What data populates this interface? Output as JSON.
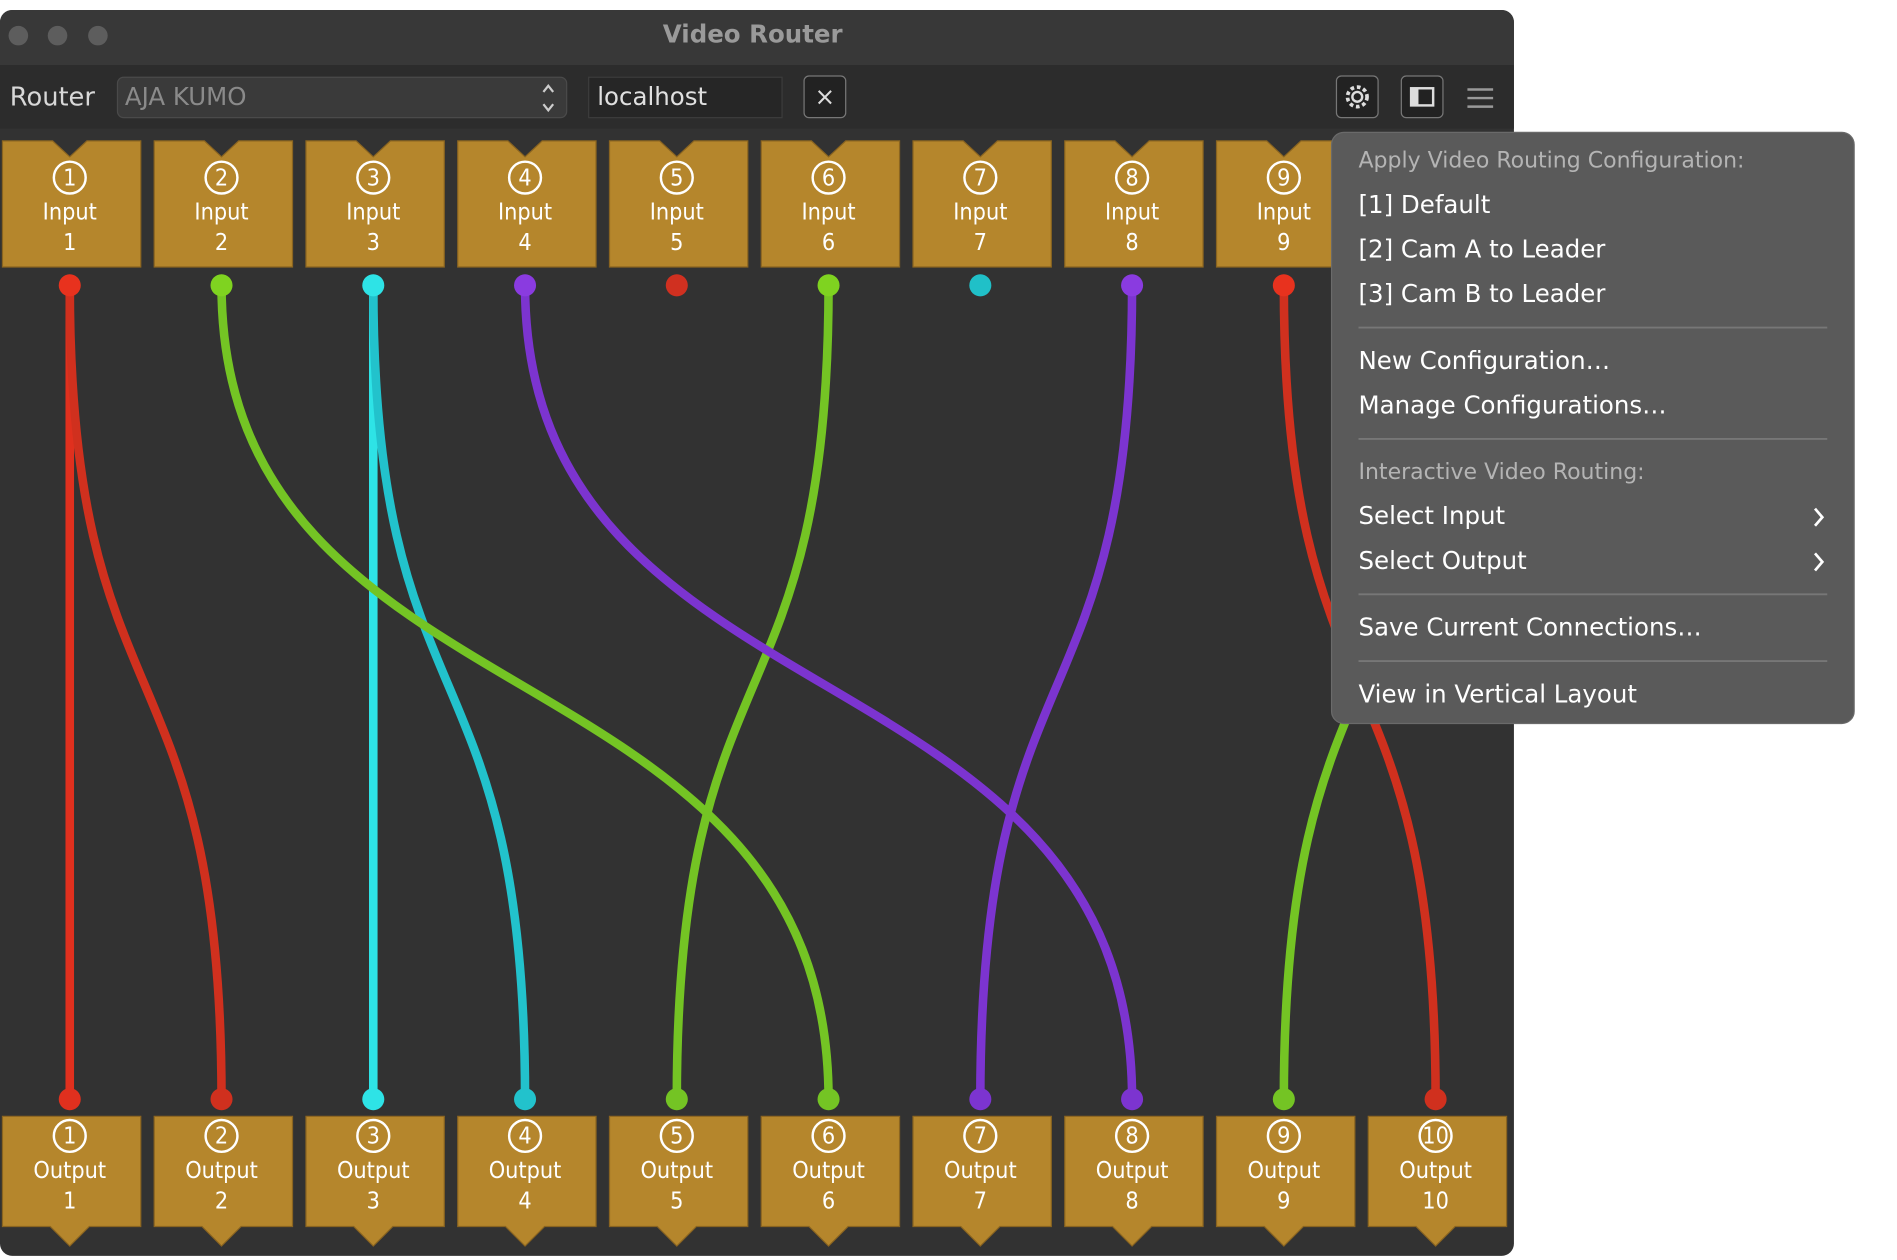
{
  "window": {
    "title": "Video Router"
  },
  "toolbar": {
    "label": "Router",
    "router": "AJA KUMO",
    "host": "localhost",
    "clear": "×"
  },
  "inputs": [
    {
      "number": "1",
      "label": "Input",
      "color": "#e8321e"
    },
    {
      "number": "2",
      "label": "Input",
      "color": "#7fd320"
    },
    {
      "number": "3",
      "label": "Input",
      "color": "#2ee3e6"
    },
    {
      "number": "4",
      "label": "Input",
      "color": "#8a3be0"
    },
    {
      "number": "5",
      "label": "Input",
      "color": "#d03020"
    },
    {
      "number": "6",
      "label": "Input",
      "color": "#7fd320"
    },
    {
      "number": "7",
      "label": "Input",
      "color": "#20c0c8"
    },
    {
      "number": "8",
      "label": "Input",
      "color": "#8a3be0"
    },
    {
      "number": "9",
      "label": "Input",
      "color": "#e8321e"
    }
  ],
  "outputs": [
    {
      "number": "1",
      "label": "Output",
      "source": 1,
      "color": "#e0301e"
    },
    {
      "number": "2",
      "label": "Output",
      "source": 1,
      "color": "#d0301e"
    },
    {
      "number": "3",
      "label": "Output",
      "source": 3,
      "color": "#2ee3e6"
    },
    {
      "number": "4",
      "label": "Output",
      "source": 3,
      "color": "#22c2cc"
    },
    {
      "number": "5",
      "label": "Output",
      "source": 6,
      "color": "#74c424"
    },
    {
      "number": "6",
      "label": "Output",
      "source": 2,
      "color": "#74c424"
    },
    {
      "number": "7",
      "label": "Output",
      "source": 8,
      "color": "#7c34d0"
    },
    {
      "number": "8",
      "label": "Output",
      "source": 4,
      "color": "#7c34d0"
    },
    {
      "number": "9",
      "label": "Output",
      "source": 10,
      "color": "#74c424"
    },
    {
      "number": "10",
      "label": "Output",
      "source": 9,
      "color": "#d0301e"
    }
  ],
  "menu": {
    "sections": [
      {
        "header": "Apply Video Routing Configuration:",
        "items": [
          "[1] Default",
          "[2] Cam A to Leader",
          "[3] Cam B to Leader"
        ]
      },
      {
        "items": [
          "New Configuration…",
          "Manage Configurations…"
        ]
      },
      {
        "header": "Interactive Video Routing:",
        "items": [
          "Select Input",
          "Select Output"
        ],
        "submenu": true
      },
      {
        "items": [
          "Save Current Connections…"
        ]
      },
      {
        "items": [
          "View in Vertical Layout"
        ]
      }
    ]
  }
}
